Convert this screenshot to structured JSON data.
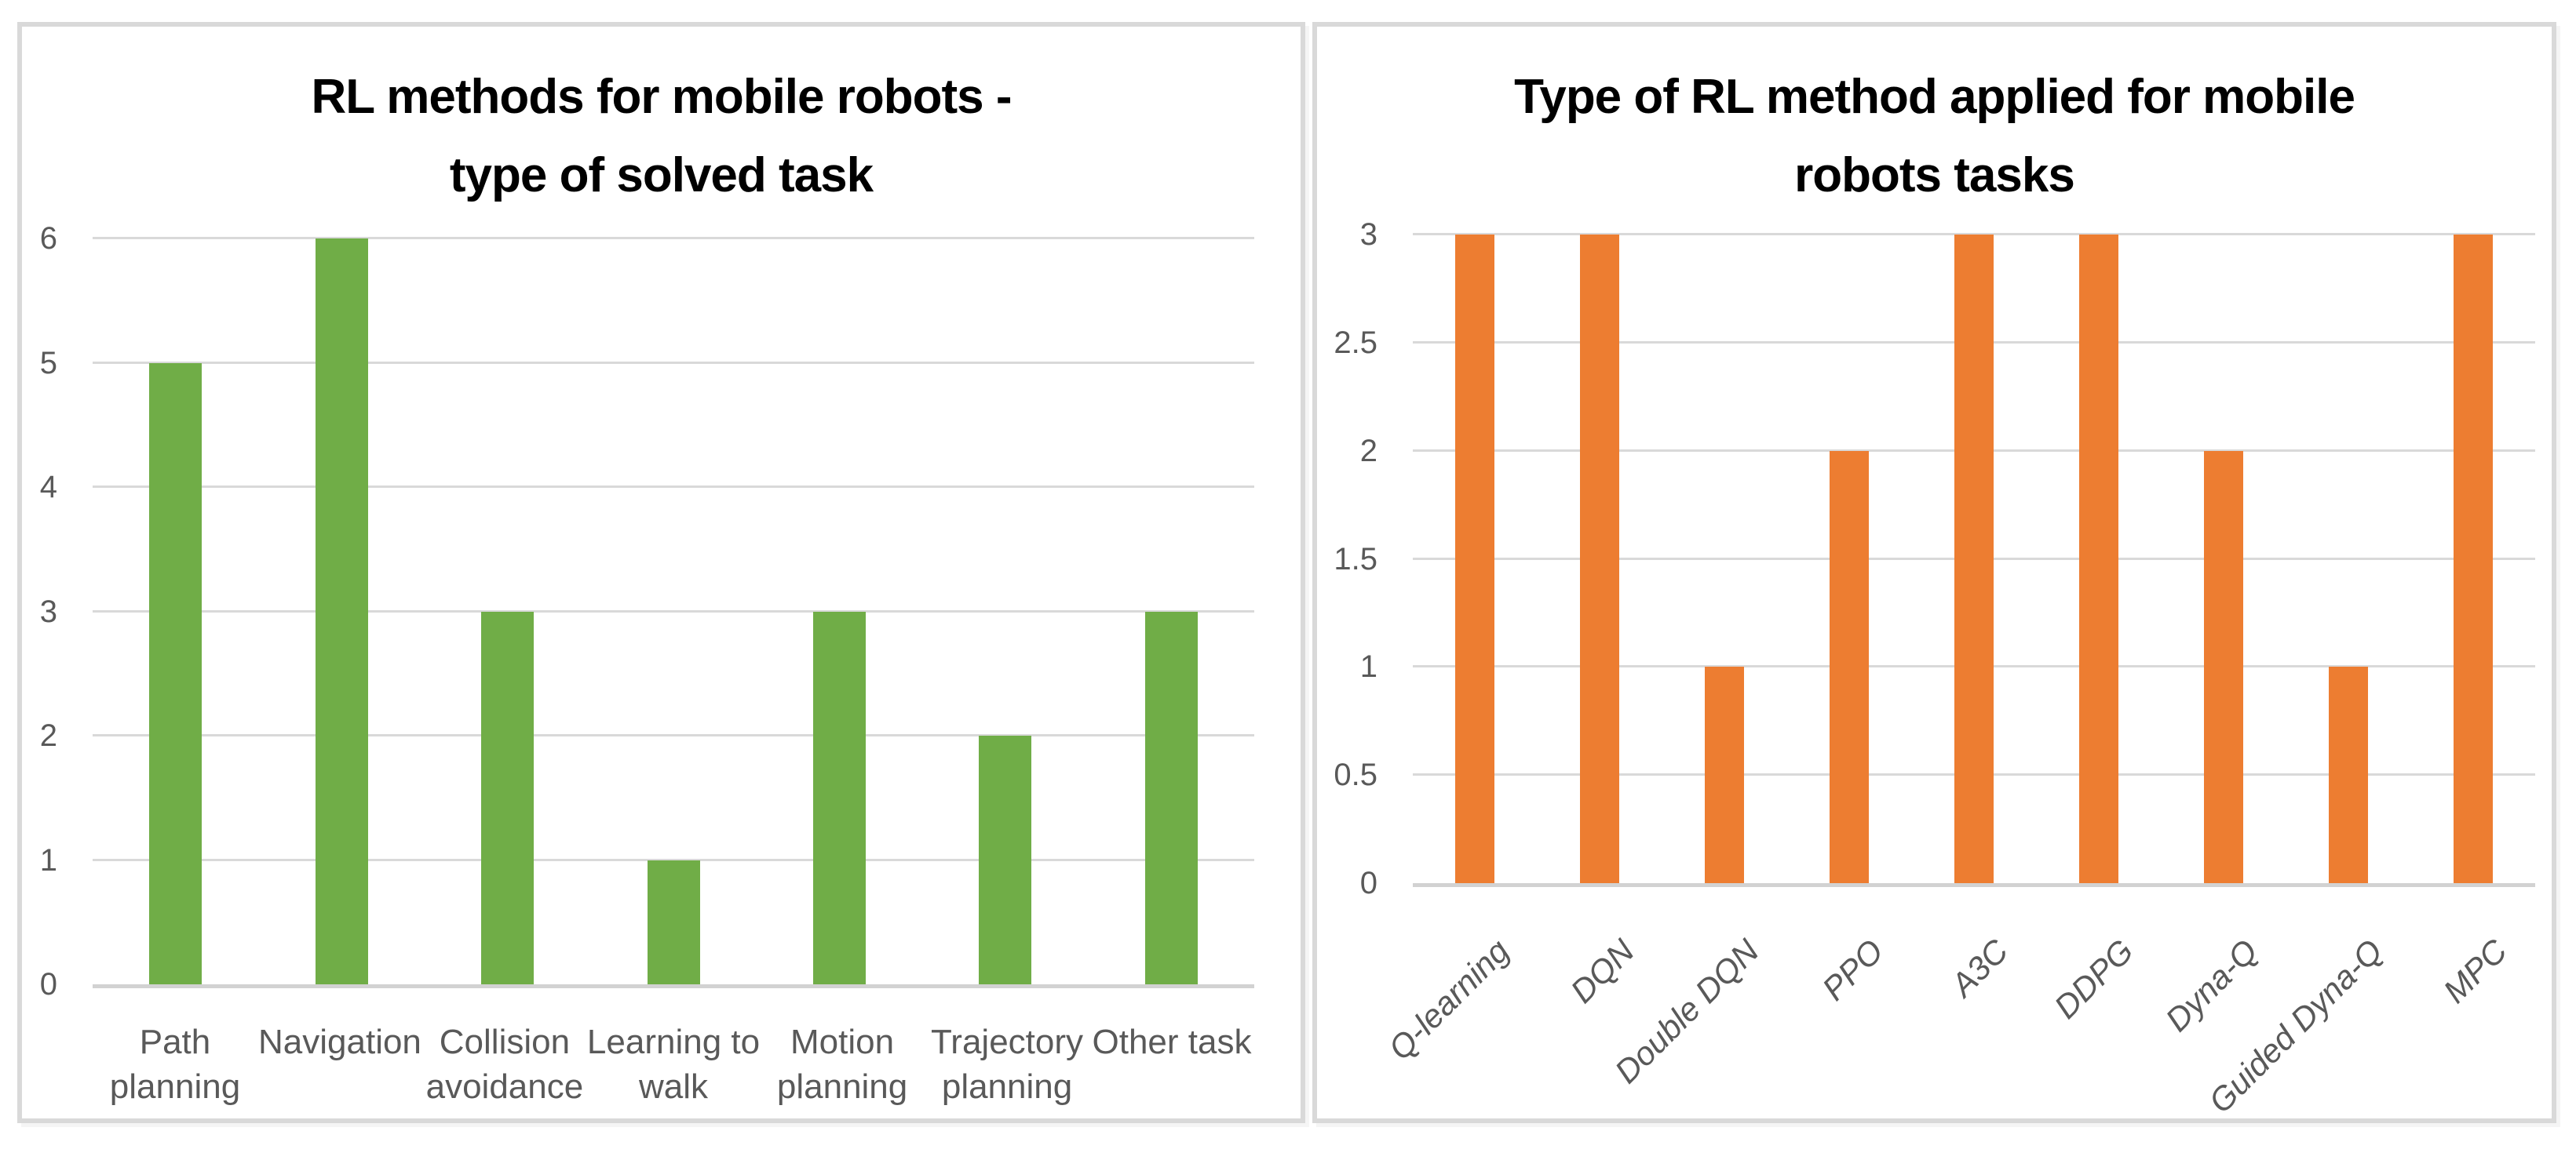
{
  "colors": {
    "green_bar": "#70AD47",
    "orange_bar": "#ED7D31",
    "gridline": "#D9D9D9",
    "axis_line": "#D2D2D2",
    "tick_text": "#595959",
    "title_text": "#000000",
    "panel_border": "#D9D9D9",
    "background": "#FFFFFF"
  },
  "chart_data": [
    {
      "type": "bar",
      "title": "RL methods for mobile robots - type of solved task",
      "title_lines": [
        "RL methods for mobile robots -",
        "type of solved task"
      ],
      "categories": [
        "Path planning",
        "Navigation",
        "Collision avoidance",
        "Learning to walk",
        "Motion planning",
        "Trajectory planning",
        "Other task"
      ],
      "category_lines": [
        [
          "Path",
          "planning"
        ],
        [
          "Navigation"
        ],
        [
          "Collision",
          "avoidance"
        ],
        [
          "Learning to",
          "walk"
        ],
        [
          "Motion",
          "planning"
        ],
        [
          "Trajectory",
          "planning"
        ],
        [
          "Other task"
        ]
      ],
      "values": [
        5,
        6,
        3,
        1,
        3,
        2,
        3
      ],
      "xlabel": "",
      "ylabel": "",
      "ylim": [
        0,
        6
      ],
      "y_ticks": [
        "0",
        "1",
        "2",
        "3",
        "4",
        "5",
        "6"
      ],
      "bar_color": "#70AD47",
      "grid": true,
      "legend_position": "none",
      "x_label_rotation": 0
    },
    {
      "type": "bar",
      "title": "Type of RL method applied for mobile robots tasks",
      "title_lines": [
        "Type of RL method applied for mobile",
        "robots tasks"
      ],
      "categories": [
        "Q-learning",
        "DQN",
        "Double DQN",
        "PPO",
        "A3C",
        "DDPG",
        "Dyna-Q",
        "Guided Dyna-Q",
        "MPC"
      ],
      "values": [
        3,
        3,
        1,
        2,
        3,
        3,
        2,
        1,
        3
      ],
      "xlabel": "",
      "ylabel": "",
      "ylim": [
        0,
        3
      ],
      "y_ticks": [
        "0",
        "0.5",
        "1",
        "1.5",
        "2",
        "2.5",
        "3"
      ],
      "bar_color": "#ED7D31",
      "grid": true,
      "legend_position": "none",
      "x_label_rotation": -45
    }
  ]
}
